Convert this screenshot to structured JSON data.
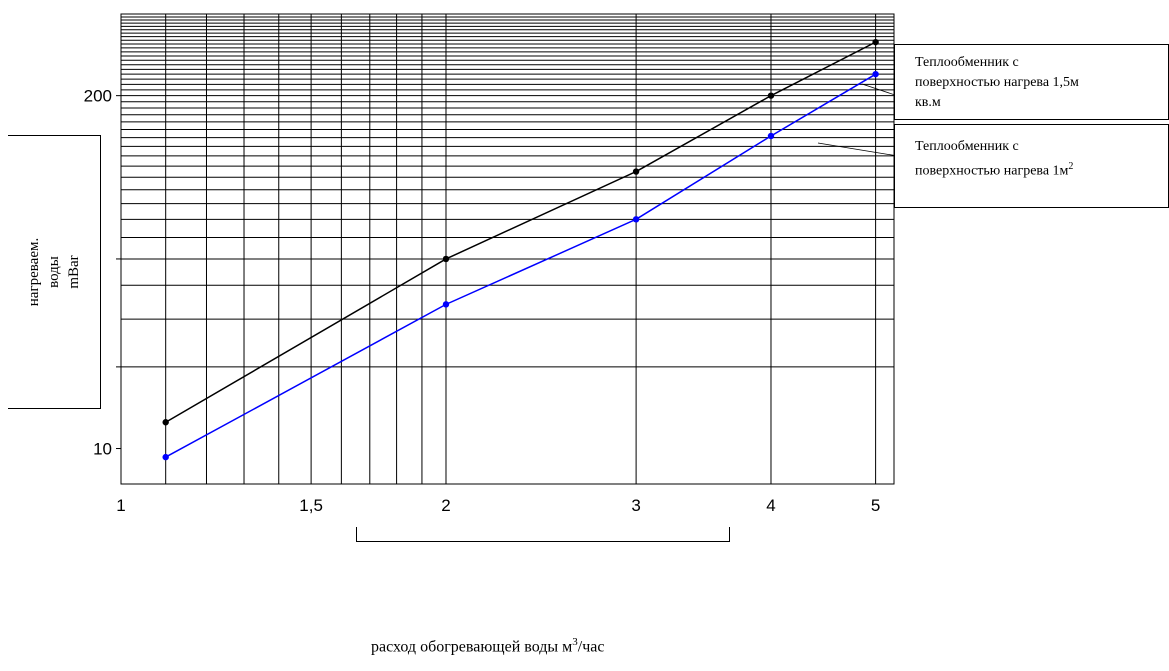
{
  "chart_data": {
    "type": "line",
    "x_scale": "log",
    "y_scale": "log",
    "xlabel_pre": "расход обогревающей воды м",
    "xlabel_sup": "3",
    "xlabel_post": "/час",
    "ylabel_lines": [
      "нагреваем.",
      "воды",
      "mBar"
    ],
    "x_tick_labels": [
      {
        "value": 1,
        "label": "1"
      },
      {
        "value": 1.5,
        "label": "1,5"
      },
      {
        "value": 2,
        "label": "2"
      },
      {
        "value": 3,
        "label": "3"
      },
      {
        "value": 4,
        "label": "4"
      },
      {
        "value": 5,
        "label": "5"
      }
    ],
    "y_tick_labels": [
      {
        "value": 10,
        "label": "10"
      },
      {
        "value": 200,
        "label": "200"
      }
    ],
    "xlim": [
      1,
      5.2
    ],
    "ylim": [
      7.4,
      400
    ],
    "grid": true,
    "series": [
      {
        "color": "#000000",
        "x": [
          1.1,
          2,
          3,
          4,
          5
        ],
        "y": [
          12.5,
          50,
          105,
          200,
          315
        ]
      },
      {
        "color": "#0000ff",
        "x": [
          1.1,
          2,
          3,
          4,
          5
        ],
        "y": [
          9.3,
          34,
          70,
          142,
          240
        ]
      }
    ],
    "legend": [
      {
        "text_lines": [
          "Теплообменник с",
          "поверхностью нагрева 1,5м",
          "кв.м"
        ]
      },
      {
        "text_lines": [
          "Теплообменник с"
        ],
        "text_pre": "поверхностью нагрева 1м",
        "text_sup": "2"
      }
    ]
  }
}
